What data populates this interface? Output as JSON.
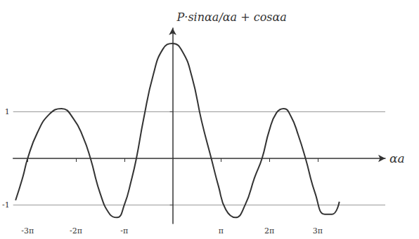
{
  "chart_data": {
    "type": "line",
    "ylabel": "P·sinαa/αa + cosαa",
    "xlabel": "αa",
    "x": [
      -3.25,
      -3.1,
      -3.0,
      -2.8,
      -2.55,
      -2.3,
      -2.05,
      -1.85,
      -1.7,
      -1.5,
      -1.3,
      -1.15,
      -1.0,
      -0.85,
      -0.75,
      -0.6,
      -0.4,
      -0.2,
      0,
      0.2,
      0.4,
      0.6,
      0.8,
      0.95,
      1.1,
      1.3,
      1.5,
      1.7,
      1.85,
      2.0,
      2.15,
      2.3,
      2.45,
      2.6,
      2.75,
      2.95,
      3.15,
      3.3,
      3.45
    ],
    "values": [
      -0.9,
      -0.4,
      0,
      0.55,
      0.95,
      1.07,
      0.85,
      0.45,
      0,
      -0.75,
      -1.2,
      -1.27,
      -1.0,
      -0.45,
      0,
      0.85,
      1.8,
      2.35,
      2.47,
      2.3,
      1.75,
      0.8,
      0,
      -0.6,
      -1.1,
      -1.27,
      -1.0,
      -0.4,
      0,
      0.6,
      0.98,
      1.07,
      0.9,
      0.5,
      0,
      -0.75,
      -1.2,
      -1.2,
      -0.93
    ],
    "color": "#333333",
    "xlim": [
      -3.3,
      4.4
    ],
    "xticks": [
      {
        "value": -3,
        "label": "-3π"
      },
      {
        "value": -2,
        "label": "-2π"
      },
      {
        "value": -1,
        "label": "-π"
      },
      {
        "value": 1,
        "label": "π"
      },
      {
        "value": 2,
        "label": "2π"
      },
      {
        "value": 3,
        "label": "3π"
      }
    ],
    "ylim": [
      -1.4,
      2.8
    ],
    "yticks": [
      -1,
      1
    ],
    "grid": true
  }
}
